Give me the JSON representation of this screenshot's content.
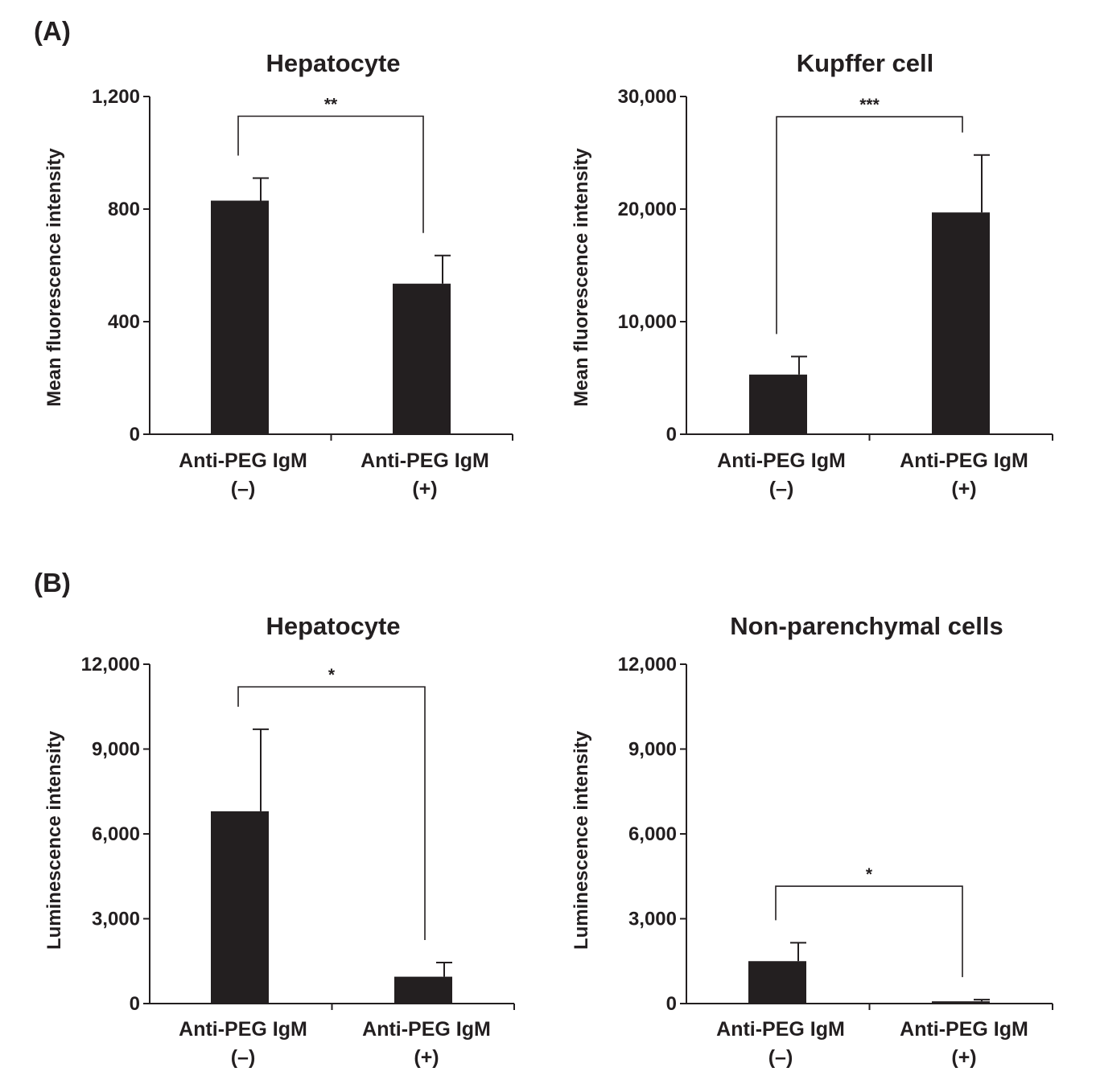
{
  "panels": [
    {
      "label": "(A)"
    },
    {
      "label": "(B)"
    }
  ],
  "chart_data": [
    {
      "type": "bar",
      "panel": "(A)",
      "title": "Hepatocyte",
      "ylabel": "Mean fluorescence intensity",
      "ylim": [
        0,
        1200
      ],
      "yticks": [
        0,
        400,
        800,
        1200
      ],
      "ytick_labels": [
        "0",
        "400",
        "800",
        "1,200"
      ],
      "categories": [
        [
          "Anti-PEG IgM",
          "(–)"
        ],
        [
          "Anti-PEG IgM",
          "(+)"
        ]
      ],
      "values": [
        830,
        535
      ],
      "errors": [
        80,
        100
      ],
      "significance": {
        "label": "**",
        "from": 0,
        "to": 1,
        "y": 1130
      }
    },
    {
      "type": "bar",
      "panel": "(A)",
      "title": "Kupffer cell",
      "ylabel": "Mean fluorescence intensity",
      "ylim": [
        0,
        30000
      ],
      "yticks": [
        0,
        10000,
        20000,
        30000
      ],
      "ytick_labels": [
        "0",
        "10,000",
        "20,000",
        "30,000"
      ],
      "categories": [
        [
          "Anti-PEG IgM",
          "(–)"
        ],
        [
          "Anti-PEG IgM",
          "(+)"
        ]
      ],
      "values": [
        5300,
        19700
      ],
      "errors": [
        1600,
        5100
      ],
      "significance": {
        "label": "***",
        "from": 0,
        "to": 1,
        "y": 28200
      }
    },
    {
      "type": "bar",
      "panel": "(B)",
      "title": "Hepatocyte",
      "ylabel": "Luminescence intensity",
      "ylim": [
        0,
        12000
      ],
      "yticks": [
        0,
        3000,
        6000,
        9000,
        12000
      ],
      "ytick_labels": [
        "0",
        "3,000",
        "6,000",
        "9,000",
        "12,000"
      ],
      "categories": [
        [
          "Anti-PEG IgM",
          "(–)"
        ],
        [
          "Anti-PEG IgM",
          "(+)"
        ]
      ],
      "values": [
        6800,
        950
      ],
      "errors": [
        2900,
        500
      ],
      "significance": {
        "label": "*",
        "from": 0,
        "to": 1,
        "y": 11200
      }
    },
    {
      "type": "bar",
      "panel": "(B)",
      "title": "Non-parenchymal cells",
      "ylabel": "Luminescence intensity",
      "ylim": [
        0,
        12000
      ],
      "yticks": [
        0,
        3000,
        6000,
        9000,
        12000
      ],
      "ytick_labels": [
        "0",
        "3,000",
        "6,000",
        "9,000",
        "12,000"
      ],
      "categories": [
        [
          "Anti-PEG IgM",
          "(–)"
        ],
        [
          "Anti-PEG IgM",
          "(+)"
        ]
      ],
      "values": [
        1500,
        80
      ],
      "errors": [
        650,
        60
      ],
      "significance": {
        "label": "*",
        "from": 0,
        "to": 1,
        "y": 4150
      }
    }
  ],
  "colors": {
    "bar": "#231f20",
    "axis": "#231f20",
    "text": "#231f20"
  }
}
